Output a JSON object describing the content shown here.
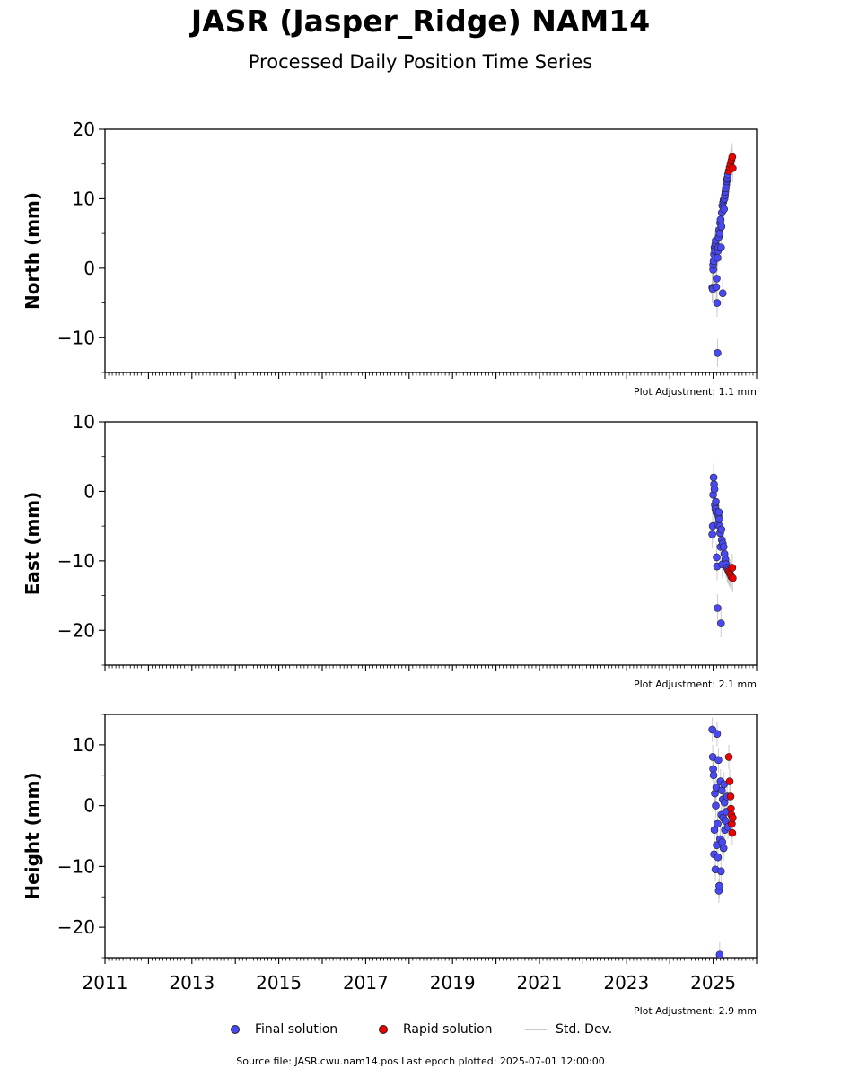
{
  "title": "JASR (Jasper_Ridge) NAM14",
  "subtitle": "Processed Daily Position Time Series",
  "colors": {
    "final": "#4848f4",
    "rapid": "#ee0000",
    "edge": "#202020",
    "stddev": "#a8a8a8"
  },
  "legend": {
    "final": "Final solution",
    "rapid": "Rapid solution",
    "stddev": "Std. Dev."
  },
  "source_text": "Source file: JASR.cwu.nam14.pos  Last epoch plotted: 2025-07-01 12:00:00",
  "chart_data": [
    {
      "type": "scatter",
      "ylabel": "North (mm)",
      "adjustment": "Plot Adjustment: 1.1 mm",
      "xlim": [
        2011,
        2026
      ],
      "ylim": [
        -15,
        20
      ],
      "y_ticks": [
        -10,
        0,
        10,
        20
      ],
      "y_tick_labels": [
        "−10",
        "0",
        "10",
        "20"
      ],
      "y_minor": [
        -15,
        -10,
        -5,
        0,
        5,
        10,
        15,
        20
      ],
      "show_x_labels": false,
      "series": [
        {
          "kind": "final",
          "points": [
            [
              2024.98,
              -2.8
            ],
            [
              2024.99,
              -3.0
            ],
            [
              2025.0,
              -0.2
            ],
            [
              2025.0,
              0.5
            ],
            [
              2025.01,
              1.0
            ],
            [
              2025.02,
              2.0
            ],
            [
              2025.03,
              3.0
            ],
            [
              2025.04,
              2.5
            ],
            [
              2025.05,
              3.5
            ],
            [
              2025.06,
              4.0
            ],
            [
              2025.07,
              -2.7
            ],
            [
              2025.08,
              -1.5
            ],
            [
              2025.09,
              -5.0
            ],
            [
              2025.1,
              -12.2
            ],
            [
              2025.1,
              1.5
            ],
            [
              2025.11,
              2.5
            ],
            [
              2025.12,
              3.0
            ],
            [
              2025.13,
              4.5
            ],
            [
              2025.14,
              5.5
            ],
            [
              2025.15,
              5.0
            ],
            [
              2025.16,
              6.5
            ],
            [
              2025.17,
              7.0
            ],
            [
              2025.18,
              3.0
            ],
            [
              2025.19,
              6.0
            ],
            [
              2025.2,
              8.0
            ],
            [
              2025.21,
              9.0
            ],
            [
              2025.22,
              -3.6
            ],
            [
              2025.23,
              9.5
            ],
            [
              2025.24,
              9.8
            ],
            [
              2025.25,
              8.5
            ],
            [
              2025.26,
              10.0
            ],
            [
              2025.27,
              10.5
            ],
            [
              2025.28,
              11.0
            ],
            [
              2025.29,
              11.5
            ],
            [
              2025.3,
              12.0
            ],
            [
              2025.31,
              12.5
            ],
            [
              2025.32,
              12.8
            ],
            [
              2025.33,
              13.0
            ],
            [
              2025.34,
              13.5
            ]
          ]
        },
        {
          "kind": "rapid",
          "points": [
            [
              2025.36,
              14.0
            ],
            [
              2025.38,
              14.5
            ],
            [
              2025.4,
              15.0
            ],
            [
              2025.42,
              15.5
            ],
            [
              2025.44,
              16.0
            ],
            [
              2025.45,
              14.4
            ]
          ]
        }
      ]
    },
    {
      "type": "scatter",
      "ylabel": "East (mm)",
      "adjustment": "Plot Adjustment: 2.1 mm",
      "xlim": [
        2011,
        2026
      ],
      "ylim": [
        -25,
        10
      ],
      "y_ticks": [
        -20,
        -10,
        0,
        10
      ],
      "y_tick_labels": [
        "−20",
        "−10",
        "0",
        "10"
      ],
      "y_minor": [
        -25,
        -20,
        -15,
        -10,
        -5,
        0,
        5,
        10
      ],
      "show_x_labels": false,
      "series": [
        {
          "kind": "final",
          "points": [
            [
              2024.98,
              -6.2
            ],
            [
              2024.99,
              -5.0
            ],
            [
              2025.0,
              -0.5
            ],
            [
              2025.01,
              2.0
            ],
            [
              2025.02,
              1.0
            ],
            [
              2025.03,
              0.3
            ],
            [
              2025.04,
              -2.0
            ],
            [
              2025.05,
              -2.5
            ],
            [
              2025.06,
              -1.5
            ],
            [
              2025.07,
              -3.0
            ],
            [
              2025.08,
              -9.5
            ],
            [
              2025.09,
              -10.8
            ],
            [
              2025.1,
              -16.8
            ],
            [
              2025.11,
              -4.8
            ],
            [
              2025.12,
              -3.5
            ],
            [
              2025.13,
              -3.0
            ],
            [
              2025.14,
              -4.0
            ],
            [
              2025.15,
              -5.0
            ],
            [
              2025.16,
              -6.0
            ],
            [
              2025.17,
              -8.0
            ],
            [
              2025.18,
              -19.0
            ],
            [
              2025.19,
              -5.5
            ],
            [
              2025.2,
              -7.0
            ],
            [
              2025.21,
              -10.5
            ],
            [
              2025.22,
              -7.5
            ],
            [
              2025.24,
              -8.0
            ],
            [
              2025.26,
              -9.0
            ],
            [
              2025.28,
              -9.8
            ],
            [
              2025.3,
              -10.5
            ],
            [
              2025.32,
              -11.0
            ],
            [
              2025.34,
              -11.3
            ]
          ]
        },
        {
          "kind": "rapid",
          "points": [
            [
              2025.36,
              -11.5
            ],
            [
              2025.38,
              -11.8
            ],
            [
              2025.4,
              -12.0
            ],
            [
              2025.42,
              -12.3
            ],
            [
              2025.44,
              -11.0
            ],
            [
              2025.45,
              -12.5
            ]
          ]
        }
      ]
    },
    {
      "type": "scatter",
      "ylabel": "Height (mm)",
      "adjustment": "Plot Adjustment: 2.9 mm",
      "xlim": [
        2011,
        2026
      ],
      "ylim": [
        -25,
        15
      ],
      "y_ticks": [
        -20,
        -10,
        0,
        10
      ],
      "y_tick_labels": [
        "−20",
        "−10",
        "0",
        "10"
      ],
      "y_minor": [
        -25,
        -20,
        -15,
        -10,
        -5,
        0,
        5,
        10,
        15
      ],
      "show_x_labels": true,
      "x_ticks": [
        2011,
        2013,
        2015,
        2017,
        2019,
        2021,
        2023,
        2025
      ],
      "x_tick_labels": [
        "2011",
        "2013",
        "2015",
        "2017",
        "2019",
        "2021",
        "2023",
        "2025"
      ],
      "series": [
        {
          "kind": "final",
          "points": [
            [
              2024.98,
              12.5
            ],
            [
              2024.99,
              8.0
            ],
            [
              2025.0,
              6.0
            ],
            [
              2025.01,
              5.0
            ],
            [
              2025.02,
              -8.0
            ],
            [
              2025.03,
              -4.0
            ],
            [
              2025.04,
              2.0
            ],
            [
              2025.05,
              -10.5
            ],
            [
              2025.06,
              0.0
            ],
            [
              2025.07,
              3.0
            ],
            [
              2025.08,
              -6.5
            ],
            [
              2025.09,
              11.8
            ],
            [
              2025.1,
              -3.0
            ],
            [
              2025.11,
              -8.5
            ],
            [
              2025.12,
              7.5
            ],
            [
              2025.13,
              -14.0
            ],
            [
              2025.14,
              -13.2
            ],
            [
              2025.15,
              -24.5
            ],
            [
              2025.16,
              -5.5
            ],
            [
              2025.17,
              4.0
            ],
            [
              2025.18,
              -10.8
            ],
            [
              2025.19,
              -1.5
            ],
            [
              2025.2,
              2.5
            ],
            [
              2025.21,
              -6.0
            ],
            [
              2025.22,
              1.0
            ],
            [
              2025.23,
              -2.0
            ],
            [
              2025.24,
              -7.0
            ],
            [
              2025.25,
              3.5
            ],
            [
              2025.26,
              0.5
            ],
            [
              2025.27,
              -4.0
            ],
            [
              2025.28,
              -2.5
            ],
            [
              2025.3,
              -1.0
            ],
            [
              2025.32,
              1.5
            ],
            [
              2025.34,
              -3.5
            ]
          ]
        },
        {
          "kind": "rapid",
          "points": [
            [
              2025.36,
              8.0
            ],
            [
              2025.38,
              4.0
            ],
            [
              2025.4,
              1.5
            ],
            [
              2025.41,
              -0.5
            ],
            [
              2025.42,
              -1.5
            ],
            [
              2025.43,
              -3.0
            ],
            [
              2025.44,
              -4.5
            ],
            [
              2025.45,
              -2.0
            ]
          ]
        }
      ]
    }
  ]
}
